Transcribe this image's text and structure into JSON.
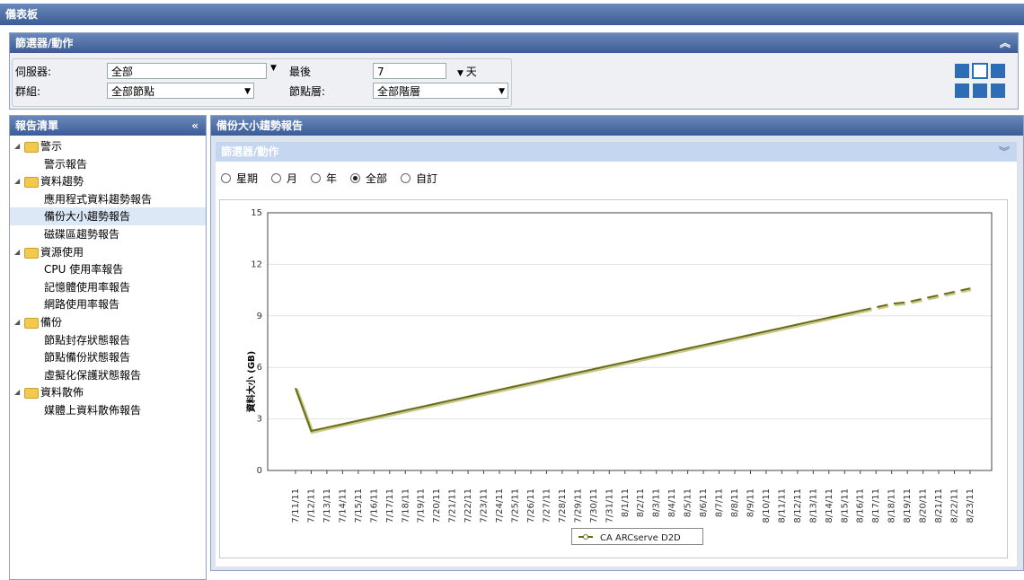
{
  "header": {
    "title": "儀表板"
  },
  "filters": {
    "title": "篩選器/動作",
    "server_label": "伺服器:",
    "server_value": "全部",
    "group_label": "群組:",
    "group_value": "全部節點",
    "last_label": "最後",
    "last_value": "7",
    "unit": "天",
    "tier_label": "節點層:",
    "tier_value": "全部階層"
  },
  "report_list": {
    "title": "報告清單",
    "selected": "備份大小趨勢報告",
    "groups": [
      {
        "label": "警示",
        "items": [
          "警示報告"
        ]
      },
      {
        "label": "資料趨勢",
        "items": [
          "應用程式資料趨勢報告",
          "備份大小趨勢報告",
          "磁碟區趨勢報告"
        ]
      },
      {
        "label": "資源使用",
        "items": [
          "CPU 使用率報告",
          "記憶體使用率報告",
          "網路使用率報告"
        ]
      },
      {
        "label": "備份",
        "items": [
          "節點封存狀態報告",
          "節點備份狀態報告",
          "虛擬化保護狀態報告"
        ]
      },
      {
        "label": "資料散佈",
        "items": [
          "媒體上資料散佈報告"
        ]
      }
    ]
  },
  "report": {
    "title": "備份大小趨勢報告",
    "filter_title": "篩選器/動作",
    "ranges": [
      "星期",
      "月",
      "年",
      "全部",
      "自訂"
    ],
    "selected_range": "全部"
  },
  "chart_data": {
    "type": "line",
    "y_label": "資料大小 (GB)",
    "categories": [
      "7/11/11",
      "7/12/11",
      "7/13/11",
      "7/14/11",
      "7/15/11",
      "7/16/11",
      "7/17/11",
      "7/18/11",
      "7/19/11",
      "7/20/11",
      "7/21/11",
      "7/22/11",
      "7/23/11",
      "7/24/11",
      "7/25/11",
      "7/26/11",
      "7/27/11",
      "7/28/11",
      "7/29/11",
      "7/30/11",
      "7/31/11",
      "8/1/11",
      "8/2/11",
      "8/3/11",
      "8/4/11",
      "8/5/11",
      "8/6/11",
      "8/7/11",
      "8/8/11",
      "8/9/11",
      "8/10/11",
      "8/11/11",
      "8/12/11",
      "8/13/11",
      "8/14/11",
      "8/15/11",
      "8/16/11",
      "8/17/11",
      "8/18/11",
      "8/19/11",
      "8/20/11",
      "8/21/11",
      "8/22/11",
      "8/23/11"
    ],
    "series": [
      {
        "name": "CA ARCserve D2D",
        "color": "#6b6b1c",
        "values": [
          4.8,
          2.3,
          2.5,
          2.7,
          2.9,
          3.1,
          3.3,
          3.5,
          3.7,
          3.9,
          4.1,
          4.3,
          4.5,
          4.7,
          4.9,
          5.1,
          5.3,
          5.5,
          5.7,
          5.9,
          6.1,
          6.3,
          6.5,
          6.7,
          6.9,
          7.1,
          7.3,
          7.5,
          7.7,
          7.9,
          8.1,
          8.3,
          8.5,
          8.7,
          8.9,
          9.1,
          9.3,
          null,
          null,
          null,
          null,
          null,
          null,
          null
        ],
        "projected": [
          null,
          null,
          null,
          null,
          null,
          null,
          null,
          null,
          null,
          null,
          null,
          null,
          null,
          null,
          null,
          null,
          null,
          null,
          null,
          null,
          null,
          null,
          null,
          null,
          null,
          null,
          null,
          null,
          null,
          null,
          null,
          null,
          null,
          null,
          null,
          null,
          9.3,
          9.5,
          9.7,
          9.8,
          10.0,
          10.2,
          10.4,
          10.6
        ]
      }
    ],
    "ylim": [
      0,
      15
    ],
    "yticks": [
      0,
      3,
      6,
      9,
      12,
      15
    ],
    "grid": true
  }
}
